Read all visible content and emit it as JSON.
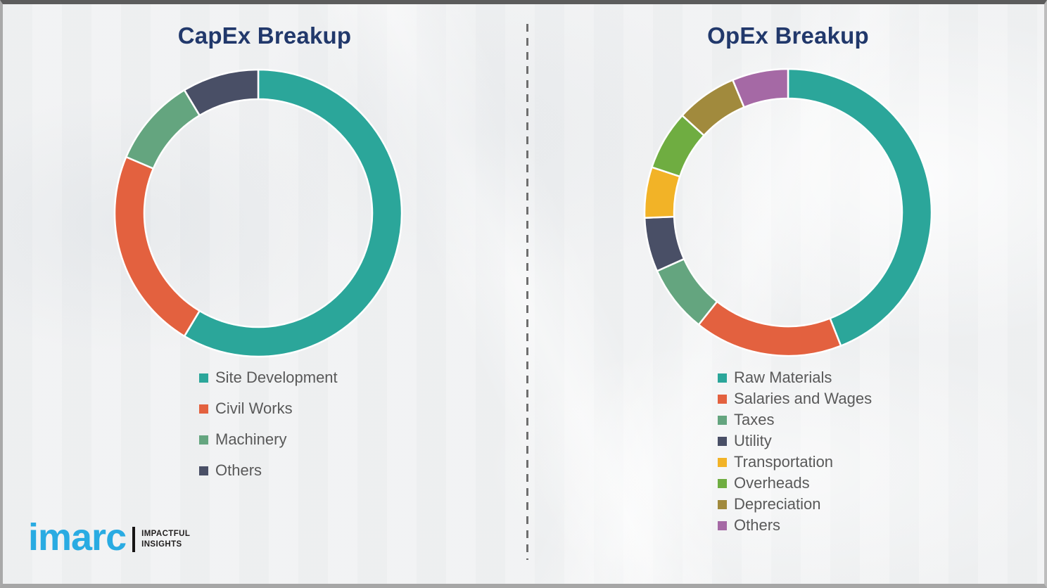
{
  "page": {
    "background_color": "#f1f2f3",
    "border_color": "#a6a6a6",
    "divider_color": "#6e6e6e",
    "title_color": "#21386B",
    "legend_text_color": "#595959"
  },
  "logo": {
    "brand": "imarc",
    "tagline_line1": "IMPACTFUL",
    "tagline_line2": "INSIGHTS",
    "brand_color": "#29ABE2"
  },
  "chart_data": [
    {
      "type": "pie",
      "subtype": "donut",
      "title": "CapEx Breakup",
      "start_angle_deg": 0,
      "direction": "clockwise",
      "hole_radius_pct": 79,
      "legend_position": "bottom-left",
      "values_are": "percent-estimated-from-arc-angles",
      "segments": [
        {
          "label": "Site Development",
          "value": 58.6,
          "color": "#2BA69A"
        },
        {
          "label": "Civil Works",
          "value": 22.8,
          "color": "#E3613F"
        },
        {
          "label": "Machinery",
          "value": 10.0,
          "color": "#64A57F"
        },
        {
          "label": "Others",
          "value": 8.6,
          "color": "#494F66"
        }
      ]
    },
    {
      "type": "pie",
      "subtype": "donut",
      "title": "OpEx Breakup",
      "start_angle_deg": 0,
      "direction": "clockwise",
      "hole_radius_pct": 79,
      "legend_position": "bottom-left",
      "values_are": "percent-estimated-from-arc-angles",
      "segments": [
        {
          "label": "Raw Materials",
          "value": 44.0,
          "color": "#2BA69A"
        },
        {
          "label": "Salaries and Wages",
          "value": 16.7,
          "color": "#E3613F"
        },
        {
          "label": "Taxes",
          "value": 7.6,
          "color": "#64A57F"
        },
        {
          "label": "Utility",
          "value": 6.1,
          "color": "#494F66"
        },
        {
          "label": "Transportation",
          "value": 5.7,
          "color": "#F2B327"
        },
        {
          "label": "Overheads",
          "value": 6.7,
          "color": "#6FAD41"
        },
        {
          "label": "Depreciation",
          "value": 6.9,
          "color": "#A18A3D"
        },
        {
          "label": "Others",
          "value": 6.3,
          "color": "#A569A5"
        }
      ]
    }
  ]
}
